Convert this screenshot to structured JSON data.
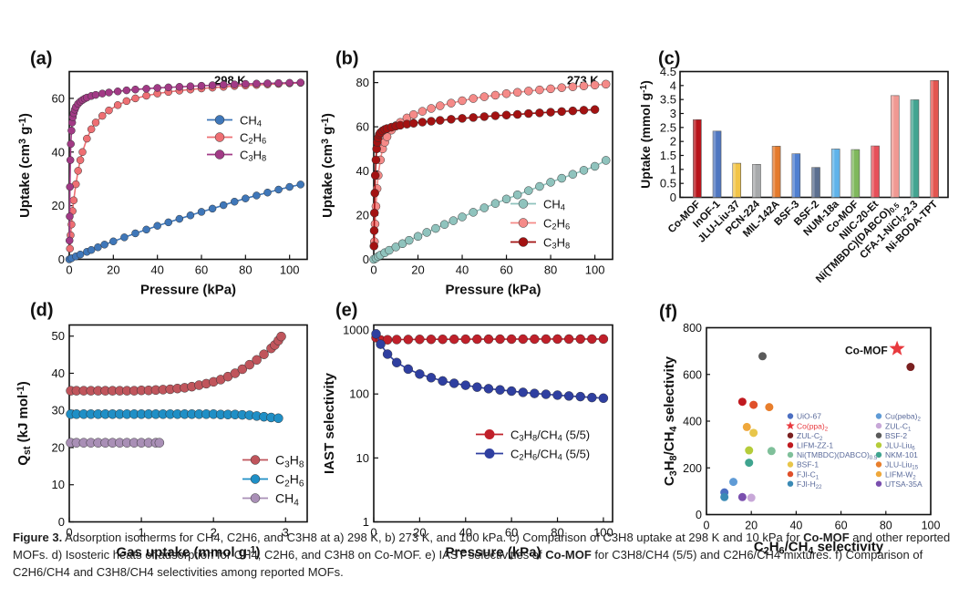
{
  "chart_data": [
    {
      "id": "a",
      "type": "line",
      "panel_label": "(a)",
      "annotation": "298 K",
      "xlabel": "Pressure (kPa)",
      "ylabel": "Uptake (cm3 g-1)",
      "xlim": [
        0,
        108
      ],
      "ylim": [
        0,
        70
      ],
      "xticks": [
        0,
        20,
        40,
        60,
        80,
        100
      ],
      "yticks": [
        0,
        20,
        40,
        60
      ],
      "legend_position": "center-right",
      "series": [
        {
          "name": "CH4",
          "color": "#3f77b9",
          "x": [
            0,
            1,
            3,
            5,
            8,
            10,
            13,
            16,
            20,
            25,
            30,
            35,
            40,
            45,
            50,
            55,
            60,
            65,
            70,
            75,
            80,
            85,
            90,
            95,
            100,
            105
          ],
          "y": [
            0,
            0.4,
            1.1,
            1.8,
            2.8,
            3.5,
            4.5,
            5.5,
            6.7,
            8.2,
            9.7,
            11.1,
            12.5,
            13.8,
            15.1,
            16.4,
            17.7,
            18.9,
            20.2,
            21.5,
            22.7,
            23.8,
            24.9,
            26.0,
            27.0,
            27.9
          ]
        },
        {
          "name": "C2H6",
          "color": "#ee6f73",
          "x": [
            0.3,
            0.6,
            1,
            1.5,
            2,
            3,
            4,
            5,
            6,
            8,
            10,
            12,
            15,
            18,
            22,
            26,
            30,
            35,
            40,
            45,
            50,
            55,
            60,
            65,
            70,
            75,
            80,
            85,
            90,
            95,
            100,
            105
          ],
          "y": [
            4,
            9,
            13,
            18,
            22,
            28,
            33,
            37,
            40,
            45,
            48.5,
            51,
            53.5,
            55.5,
            57.5,
            59,
            60,
            61,
            61.8,
            62.4,
            62.9,
            63.3,
            63.7,
            64,
            64.3,
            64.6,
            64.8,
            65,
            65.2,
            65.4,
            65.6,
            65.8
          ]
        },
        {
          "name": "C3H8",
          "color": "#a23a86",
          "x": [
            0.1,
            0.2,
            0.3,
            0.5,
            0.7,
            1,
            1.3,
            1.6,
            2,
            2.5,
            3,
            4,
            5,
            6,
            7,
            8,
            10,
            12,
            15,
            18,
            22,
            26,
            30,
            35,
            40,
            45,
            50,
            55,
            60,
            65,
            70,
            75,
            80,
            85,
            90,
            95,
            100,
            105
          ],
          "y": [
            7,
            16,
            27,
            37,
            43,
            48,
            51,
            53,
            54.5,
            55.8,
            56.8,
            58,
            58.8,
            59.4,
            59.9,
            60.3,
            60.9,
            61.3,
            61.8,
            62.2,
            62.6,
            63,
            63.3,
            63.6,
            63.9,
            64.1,
            64.3,
            64.5,
            64.7,
            64.9,
            65.1,
            65.2,
            65.4,
            65.5,
            65.6,
            65.7,
            65.8,
            65.9
          ]
        }
      ]
    },
    {
      "id": "b",
      "type": "line",
      "panel_label": "(b)",
      "annotation": "273 K",
      "xlabel": "Pressure (kPa)",
      "ylabel": "Uptake (cm3 g-1)",
      "xlim": [
        0,
        108
      ],
      "ylim": [
        0,
        85
      ],
      "xticks": [
        0,
        20,
        40,
        60,
        80,
        100
      ],
      "yticks": [
        0,
        20,
        40,
        60,
        80
      ],
      "legend_position": "lower-right",
      "series": [
        {
          "name": "CH4",
          "color": "#8fc3bd",
          "x": [
            0,
            1,
            2,
            3,
            5,
            7,
            10,
            13,
            16,
            20,
            24,
            28,
            32,
            36,
            40,
            45,
            50,
            55,
            60,
            65,
            70,
            75,
            80,
            85,
            90,
            95,
            100,
            105
          ],
          "y": [
            0,
            0.6,
            1.3,
            1.9,
            3,
            4.1,
            5.6,
            7.1,
            8.6,
            10.4,
            12.2,
            14,
            15.8,
            17.5,
            19.2,
            21.3,
            23.3,
            25.3,
            27.3,
            29.2,
            31.1,
            33,
            34.9,
            36.7,
            38.5,
            40.3,
            42.1,
            44.8
          ]
        },
        {
          "name": "C2H6",
          "color": "#f58a88",
          "x": [
            0.3,
            0.6,
            1,
            1.5,
            2,
            3,
            4,
            5,
            6,
            8,
            10,
            12,
            15,
            18,
            22,
            26,
            30,
            35,
            40,
            45,
            50,
            55,
            60,
            65,
            70,
            75,
            80,
            85,
            90,
            95,
            100,
            105
          ],
          "y": [
            8,
            16,
            24,
            32,
            38,
            45,
            50,
            53,
            55.5,
            58.5,
            60.5,
            62,
            64,
            65.5,
            67,
            68.3,
            69.5,
            70.7,
            71.8,
            72.8,
            73.6,
            74.3,
            75,
            75.6,
            76.2,
            76.7,
            77.2,
            77.7,
            78.1,
            78.5,
            78.9,
            79.3
          ]
        },
        {
          "name": "C3H8",
          "color": "#a31212",
          "x": [
            0.1,
            0.2,
            0.3,
            0.5,
            0.7,
            1,
            1.3,
            1.6,
            2,
            2.5,
            3,
            4,
            5,
            6,
            8,
            10,
            12,
            15,
            18,
            22,
            26,
            30,
            35,
            40,
            45,
            50,
            55,
            60,
            65,
            70,
            75,
            80,
            85,
            90,
            95,
            100
          ],
          "y": [
            6,
            13,
            21,
            30,
            38,
            45,
            50,
            53,
            55,
            56.5,
            57.3,
            58.2,
            58.8,
            59.2,
            59.8,
            60.3,
            60.7,
            61.2,
            61.6,
            62.1,
            62.5,
            62.9,
            63.4,
            63.8,
            64.2,
            64.6,
            65,
            65.3,
            65.6,
            66,
            66.3,
            66.6,
            66.9,
            67.2,
            67.5,
            67.8
          ]
        }
      ]
    },
    {
      "id": "c",
      "type": "bar",
      "panel_label": "(c)",
      "ylabel": "Uptake (mmol g-1)",
      "ylim": [
        0,
        4.5
      ],
      "yticks": [
        0,
        0.5,
        1,
        1.5,
        2,
        2.5,
        3,
        3.5,
        4,
        4.5
      ],
      "categories": [
        "Co-MOF",
        "InOF-1",
        "JLU-Liu-37",
        "PCN-224",
        "MIL-142A",
        "BSF-3",
        "BSF-2",
        "NUM-18a",
        "Co-MOF",
        "NIIC-20-Et",
        "Ni(TMBDC)(DABCO)0.5",
        "CFA-1-NiCl2-2.3",
        "Ni-BODA-TPT"
      ],
      "values": [
        2.78,
        2.37,
        1.22,
        1.18,
        1.83,
        1.56,
        1.07,
        1.73,
        1.71,
        1.84,
        3.64,
        3.49,
        4.18
      ],
      "colors": [
        "#b8141b",
        "#4f76c0",
        "#f2c447",
        "#a7a9ab",
        "#e47a2c",
        "#4f7fd0",
        "#5c6f8f",
        "#5fb3ea",
        "#7fb85c",
        "#e6505a",
        "#f09892",
        "#43a491",
        "#e35550"
      ]
    },
    {
      "id": "d",
      "type": "line",
      "panel_label": "(d)",
      "xlabel": "Gas uptake (mmol g-1)",
      "ylabel": "Qst (kJ mol-1)",
      "xlim": [
        0,
        3.3
      ],
      "ylim": [
        0,
        53
      ],
      "xticks": [
        0,
        1,
        2,
        3
      ],
      "yticks": [
        0,
        10,
        20,
        30,
        40,
        50
      ],
      "legend_position": "lower-right",
      "series": [
        {
          "name": "C3H8",
          "color": "#c0555c",
          "x": [
            0.02,
            0.1,
            0.2,
            0.3,
            0.4,
            0.5,
            0.6,
            0.7,
            0.8,
            0.9,
            1.0,
            1.1,
            1.2,
            1.3,
            1.4,
            1.5,
            1.6,
            1.7,
            1.8,
            1.9,
            2.0,
            2.1,
            2.2,
            2.3,
            2.4,
            2.5,
            2.6,
            2.7,
            2.8,
            2.85,
            2.9,
            2.94
          ],
          "y": [
            35.3,
            35.3,
            35.3,
            35.3,
            35.3,
            35.3,
            35.3,
            35.3,
            35.3,
            35.3,
            35.4,
            35.4,
            35.5,
            35.6,
            35.7,
            35.9,
            36.1,
            36.4,
            36.8,
            37.2,
            37.7,
            38.3,
            39.1,
            40,
            41.1,
            42.3,
            43.6,
            45.1,
            46.7,
            47.6,
            48.8,
            49.9
          ]
        },
        {
          "name": "C2H6",
          "color": "#1f8fc6",
          "x": [
            0.02,
            0.1,
            0.2,
            0.3,
            0.4,
            0.5,
            0.6,
            0.7,
            0.8,
            0.9,
            1.0,
            1.1,
            1.2,
            1.3,
            1.4,
            1.5,
            1.6,
            1.7,
            1.8,
            1.9,
            2.0,
            2.1,
            2.2,
            2.3,
            2.4,
            2.5,
            2.6,
            2.7,
            2.8,
            2.9
          ],
          "y": [
            29,
            29,
            29,
            29,
            29,
            29,
            29,
            29,
            29,
            29,
            29,
            29,
            29,
            29,
            29,
            29,
            29,
            29,
            29,
            29,
            29,
            28.9,
            28.9,
            28.9,
            28.8,
            28.7,
            28.5,
            28.3,
            28.1,
            27.9
          ]
        },
        {
          "name": "CH4",
          "color": "#a98fb6",
          "x": [
            0.02,
            0.1,
            0.2,
            0.3,
            0.4,
            0.5,
            0.6,
            0.7,
            0.8,
            0.9,
            1.0,
            1.1,
            1.2,
            1.25
          ],
          "y": [
            21.3,
            21.3,
            21.3,
            21.3,
            21.3,
            21.3,
            21.3,
            21.3,
            21.3,
            21.3,
            21.3,
            21.3,
            21.3,
            21.3
          ]
        }
      ]
    },
    {
      "id": "e",
      "type": "line",
      "panel_label": "(e)",
      "xlabel": "Pressure (kPa)",
      "ylabel": "IAST selectivity",
      "xlim": [
        0,
        104
      ],
      "ylim": [
        1,
        1200
      ],
      "yscale": "log",
      "xticks": [
        0,
        20,
        40,
        60,
        80,
        100
      ],
      "yticks": [
        1,
        10,
        100,
        1000
      ],
      "legend_position": "center-right",
      "series": [
        {
          "name": "C3H8/CH4 (5/5)",
          "color": "#c0202a",
          "x": [
            1,
            3,
            6,
            10,
            15,
            20,
            25,
            30,
            35,
            40,
            45,
            50,
            55,
            60,
            65,
            70,
            75,
            80,
            85,
            90,
            95,
            100
          ],
          "y": [
            760,
            700,
            705,
            710,
            712,
            715,
            716,
            717,
            718,
            719,
            720,
            720,
            721,
            721,
            722,
            722,
            722,
            723,
            723,
            723,
            723,
            724
          ]
        },
        {
          "name": "C2H6/CH4 (5/5)",
          "color": "#2f3fa0",
          "x": [
            1,
            3,
            6,
            10,
            15,
            20,
            25,
            30,
            35,
            40,
            45,
            50,
            55,
            60,
            65,
            70,
            75,
            80,
            85,
            90,
            95,
            100
          ],
          "y": [
            870,
            600,
            420,
            310,
            245,
            205,
            180,
            160,
            147,
            137,
            128,
            121,
            116,
            111,
            106,
            102,
            99,
            96,
            93,
            91,
            88,
            86
          ]
        }
      ]
    },
    {
      "id": "f",
      "type": "scatter",
      "panel_label": "(f)",
      "xlabel": "C2H6/CH4 selectivity",
      "ylabel": "C3H8/CH4 selectivity",
      "xlim": [
        0,
        100
      ],
      "ylim": [
        0,
        800
      ],
      "xticks": [
        0,
        20,
        40,
        60,
        80,
        100
      ],
      "yticks": [
        0,
        200,
        400,
        600,
        800
      ],
      "annotation": "Co-MOF",
      "legend_position": "lower-center",
      "points": [
        {
          "name": "UiO-67",
          "color": "#4b6fc2",
          "shape": "circle",
          "x": 8,
          "y": 95
        },
        {
          "name": "Cu(peba)2",
          "color": "#5f9bd6",
          "shape": "circle",
          "x": 12,
          "y": 140
        },
        {
          "name": "Co(ppa)2",
          "color": "#e8393e",
          "shape": "star",
          "x": 85,
          "y": 710
        },
        {
          "name": "ZUL-C1",
          "color": "#c8a8d8",
          "shape": "circle",
          "x": 20,
          "y": 72
        },
        {
          "name": "ZUL-C2",
          "color": "#7a2020",
          "shape": "circle",
          "x": 91,
          "y": 632
        },
        {
          "name": "BSF-2",
          "color": "#5a5a5a",
          "shape": "circle",
          "x": 25,
          "y": 678
        },
        {
          "name": "LIFM-ZZ-1",
          "color": "#c01a20",
          "shape": "circle",
          "x": 16,
          "y": 483
        },
        {
          "name": "JLU-Liu6",
          "color": "#b5cc3a",
          "shape": "circle",
          "x": 19,
          "y": 275
        },
        {
          "name": "Ni(TMBDC)(DABCO)0.5",
          "color": "#7fc09a",
          "shape": "circle",
          "x": 29,
          "y": 272
        },
        {
          "name": "NKM-101",
          "color": "#3fa48f",
          "shape": "circle",
          "x": 19,
          "y": 222
        },
        {
          "name": "BSF-1",
          "color": "#e8c64a",
          "shape": "circle",
          "x": 21,
          "y": 350
        },
        {
          "name": "JLU-Liu15",
          "color": "#e87e2c",
          "shape": "circle",
          "x": 28,
          "y": 460
        },
        {
          "name": "FJI-C1",
          "color": "#e0502a",
          "shape": "circle",
          "x": 21,
          "y": 470
        },
        {
          "name": "LIFM-W2",
          "color": "#efa83c",
          "shape": "circle",
          "x": 18,
          "y": 375
        },
        {
          "name": "FJI-H22",
          "color": "#3a8ab5",
          "shape": "circle",
          "x": 8,
          "y": 75
        },
        {
          "name": "UTSA-35A",
          "color": "#7a4fae",
          "shape": "circle",
          "x": 16,
          "y": 75
        }
      ]
    }
  ],
  "caption": {
    "figure_label": "Figure 3.",
    "part1": " Adsorption isotherms for CH4, C2H6, and C3H8 at a) 298 K, b) 273 K, and 100 kPa. c) Comparison of C3H8 uptake at 298 K and 10 kPa for ",
    "bold1": "Co-MOF",
    "part2": " and other reported MOFs. d) Isosteric heats of adsorption for CH4, C2H6, and C3H8 on Co-MOF. e) IAST selectivities of ",
    "bold2": "Co-MOF",
    "part3": " for C3H8/CH4 (5/5) and C2H6/CH4 mixtures. f) Comparison of C2H6/CH4 and C3H8/CH4 selectivities among reported MOFs."
  }
}
